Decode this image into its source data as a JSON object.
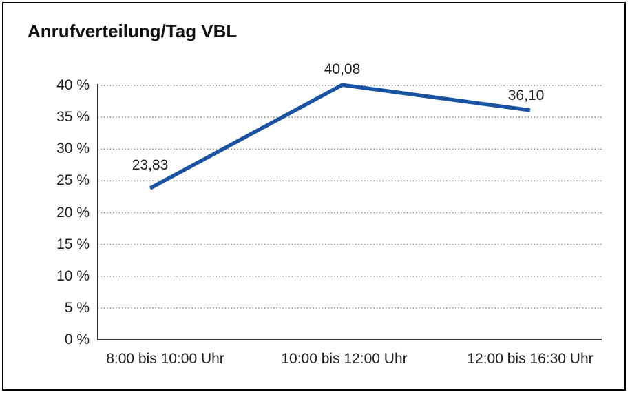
{
  "chart_data": {
    "type": "line",
    "title": "Anrufverteilung/Tag VBL",
    "categories": [
      "8:00 bis 10:00 Uhr",
      "10:00 bis 12:00 Uhr",
      "12:00 bis 16:30 Uhr"
    ],
    "series": [
      {
        "name": "Anrufverteilung/Tag VBL",
        "values": [
          23.83,
          40.08,
          36.1
        ],
        "point_labels": [
          "23,83",
          "40,08",
          "36,10"
        ]
      }
    ],
    "xlabel": "",
    "ylabel": "",
    "ylim": [
      0,
      40
    ],
    "ytick_step": 5,
    "ytick_labels": [
      "0 %",
      "5 %",
      "10 %",
      "15 %",
      "20 %",
      "25 %",
      "30 %",
      "35 %",
      "40 %"
    ],
    "grid": "horizontal dotted lines, no vertical gridlines",
    "legend": "none",
    "marker": "none"
  },
  "colors": {
    "line": "#1A53A1",
    "grid_dots": "#7d7d7d",
    "axis": "#2b2b2b",
    "text": "#1c1c1c",
    "frame_border": "#000000",
    "background": "#ffffff"
  }
}
